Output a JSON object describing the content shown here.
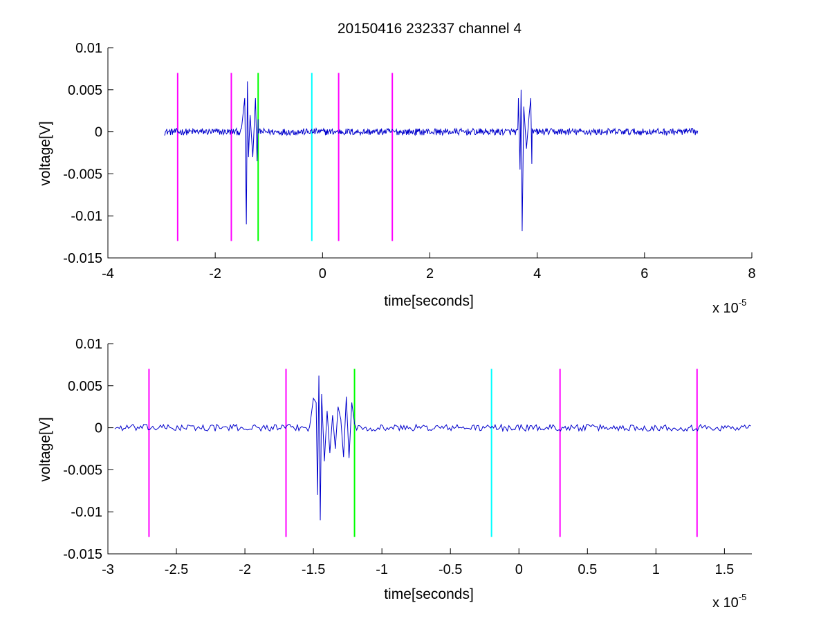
{
  "chart_data": [
    {
      "type": "line",
      "title": "20150416 232337 channel 4",
      "xlabel": "time[seconds]",
      "ylabel": "voltage[V]",
      "xlim": [
        -4,
        8
      ],
      "ylim": [
        -0.015,
        0.01
      ],
      "x_scale_multiplier": "x 10",
      "x_scale_exponent": "-5",
      "x_ticks": [
        -4,
        -2,
        0,
        2,
        4,
        6,
        8
      ],
      "x_tick_labels": [
        "-4",
        "-2",
        "0",
        "2",
        "4",
        "6",
        "8"
      ],
      "y_ticks": [
        -0.015,
        -0.01,
        -0.005,
        0,
        0.005,
        0.01
      ],
      "y_tick_labels": [
        "-0.015",
        "-0.01",
        "-0.005",
        "0",
        "0.005",
        "0.01"
      ],
      "grid": false,
      "markers": [
        {
          "x": -2.7,
          "y_range": [
            -0.013,
            0.007
          ],
          "color": "#ff00ff"
        },
        {
          "x": -1.7,
          "y_range": [
            -0.013,
            0.007
          ],
          "color": "#ff00ff"
        },
        {
          "x": -1.2,
          "y_range": [
            -0.013,
            0.007
          ],
          "color": "#00ff00"
        },
        {
          "x": -0.2,
          "y_range": [
            -0.013,
            0.007
          ],
          "color": "#00ffff"
        },
        {
          "x": 0.3,
          "y_range": [
            -0.013,
            0.007
          ],
          "color": "#ff00ff"
        },
        {
          "x": 1.3,
          "y_range": [
            -0.013,
            0.007
          ],
          "color": "#ff00ff"
        }
      ],
      "series": [
        {
          "color": "#0000cc",
          "x_range": [
            -2.95,
            7.0
          ],
          "baseline": 0,
          "noise_amplitude": 0.0004,
          "bursts": [
            {
              "x": [
                -1.5,
                -1.45,
                -1.42,
                -1.4,
                -1.38,
                -1.35,
                -1.3,
                -1.25,
                -1.22,
                -1.2
              ],
              "y": [
                0.001,
                0.004,
                -0.011,
                0.006,
                -0.003,
                0.002,
                -0.003,
                0.004,
                -0.0035,
                0.0015
              ]
            },
            {
              "x": [
                3.65,
                3.68,
                3.7,
                3.72,
                3.75,
                3.8,
                3.85,
                3.88,
                3.9
              ],
              "y": [
                0.004,
                -0.0045,
                0.005,
                -0.0118,
                0.003,
                -0.002,
                0.002,
                0.004,
                -0.0038
              ]
            }
          ]
        }
      ]
    },
    {
      "type": "line",
      "xlabel": "time[seconds]",
      "ylabel": "voltage[V]",
      "xlim": [
        -3,
        1.7
      ],
      "ylim": [
        -0.015,
        0.01
      ],
      "x_scale_multiplier": "x 10",
      "x_scale_exponent": "-5",
      "x_ticks": [
        -3,
        -2.5,
        -2,
        -1.5,
        -1,
        -0.5,
        0,
        0.5,
        1,
        1.5
      ],
      "x_tick_labels": [
        "-3",
        "-2.5",
        "-2",
        "-1.5",
        "-1",
        "-0.5",
        "0",
        "0.5",
        "1",
        "1.5"
      ],
      "y_ticks": [
        -0.015,
        -0.01,
        -0.005,
        0,
        0.005,
        0.01
      ],
      "y_tick_labels": [
        "-0.015",
        "-0.01",
        "-0.005",
        "0",
        "0.005",
        "0.01"
      ],
      "grid": false,
      "markers": [
        {
          "x": -2.7,
          "y_range": [
            -0.013,
            0.007
          ],
          "color": "#ff00ff"
        },
        {
          "x": -1.7,
          "y_range": [
            -0.013,
            0.007
          ],
          "color": "#ff00ff"
        },
        {
          "x": -1.2,
          "y_range": [
            -0.013,
            0.007
          ],
          "color": "#00ff00"
        },
        {
          "x": -0.2,
          "y_range": [
            -0.013,
            0.007
          ],
          "color": "#00ffff"
        },
        {
          "x": 0.3,
          "y_range": [
            -0.013,
            0.007
          ],
          "color": "#ff00ff"
        },
        {
          "x": 1.3,
          "y_range": [
            -0.013,
            0.007
          ],
          "color": "#ff00ff"
        }
      ],
      "series": [
        {
          "color": "#0000cc",
          "x_range": [
            -2.95,
            1.7
          ],
          "baseline": 0,
          "noise_amplitude": 0.0004,
          "bursts": [
            {
              "x": [
                -1.52,
                -1.5,
                -1.48,
                -1.47,
                -1.46,
                -1.45,
                -1.44,
                -1.42,
                -1.4,
                -1.38,
                -1.36,
                -1.34,
                -1.32,
                -1.3,
                -1.28,
                -1.26,
                -1.24,
                -1.22,
                -1.2
              ],
              "y": [
                0.001,
                0.0035,
                0.003,
                -0.008,
                0.0062,
                -0.011,
                0.004,
                -0.004,
                0.002,
                -0.003,
                0.0015,
                -0.0025,
                0.0025,
                0.001,
                -0.0035,
                0.0037,
                -0.0036,
                0.003,
                0.0005
              ]
            }
          ]
        }
      ]
    }
  ]
}
